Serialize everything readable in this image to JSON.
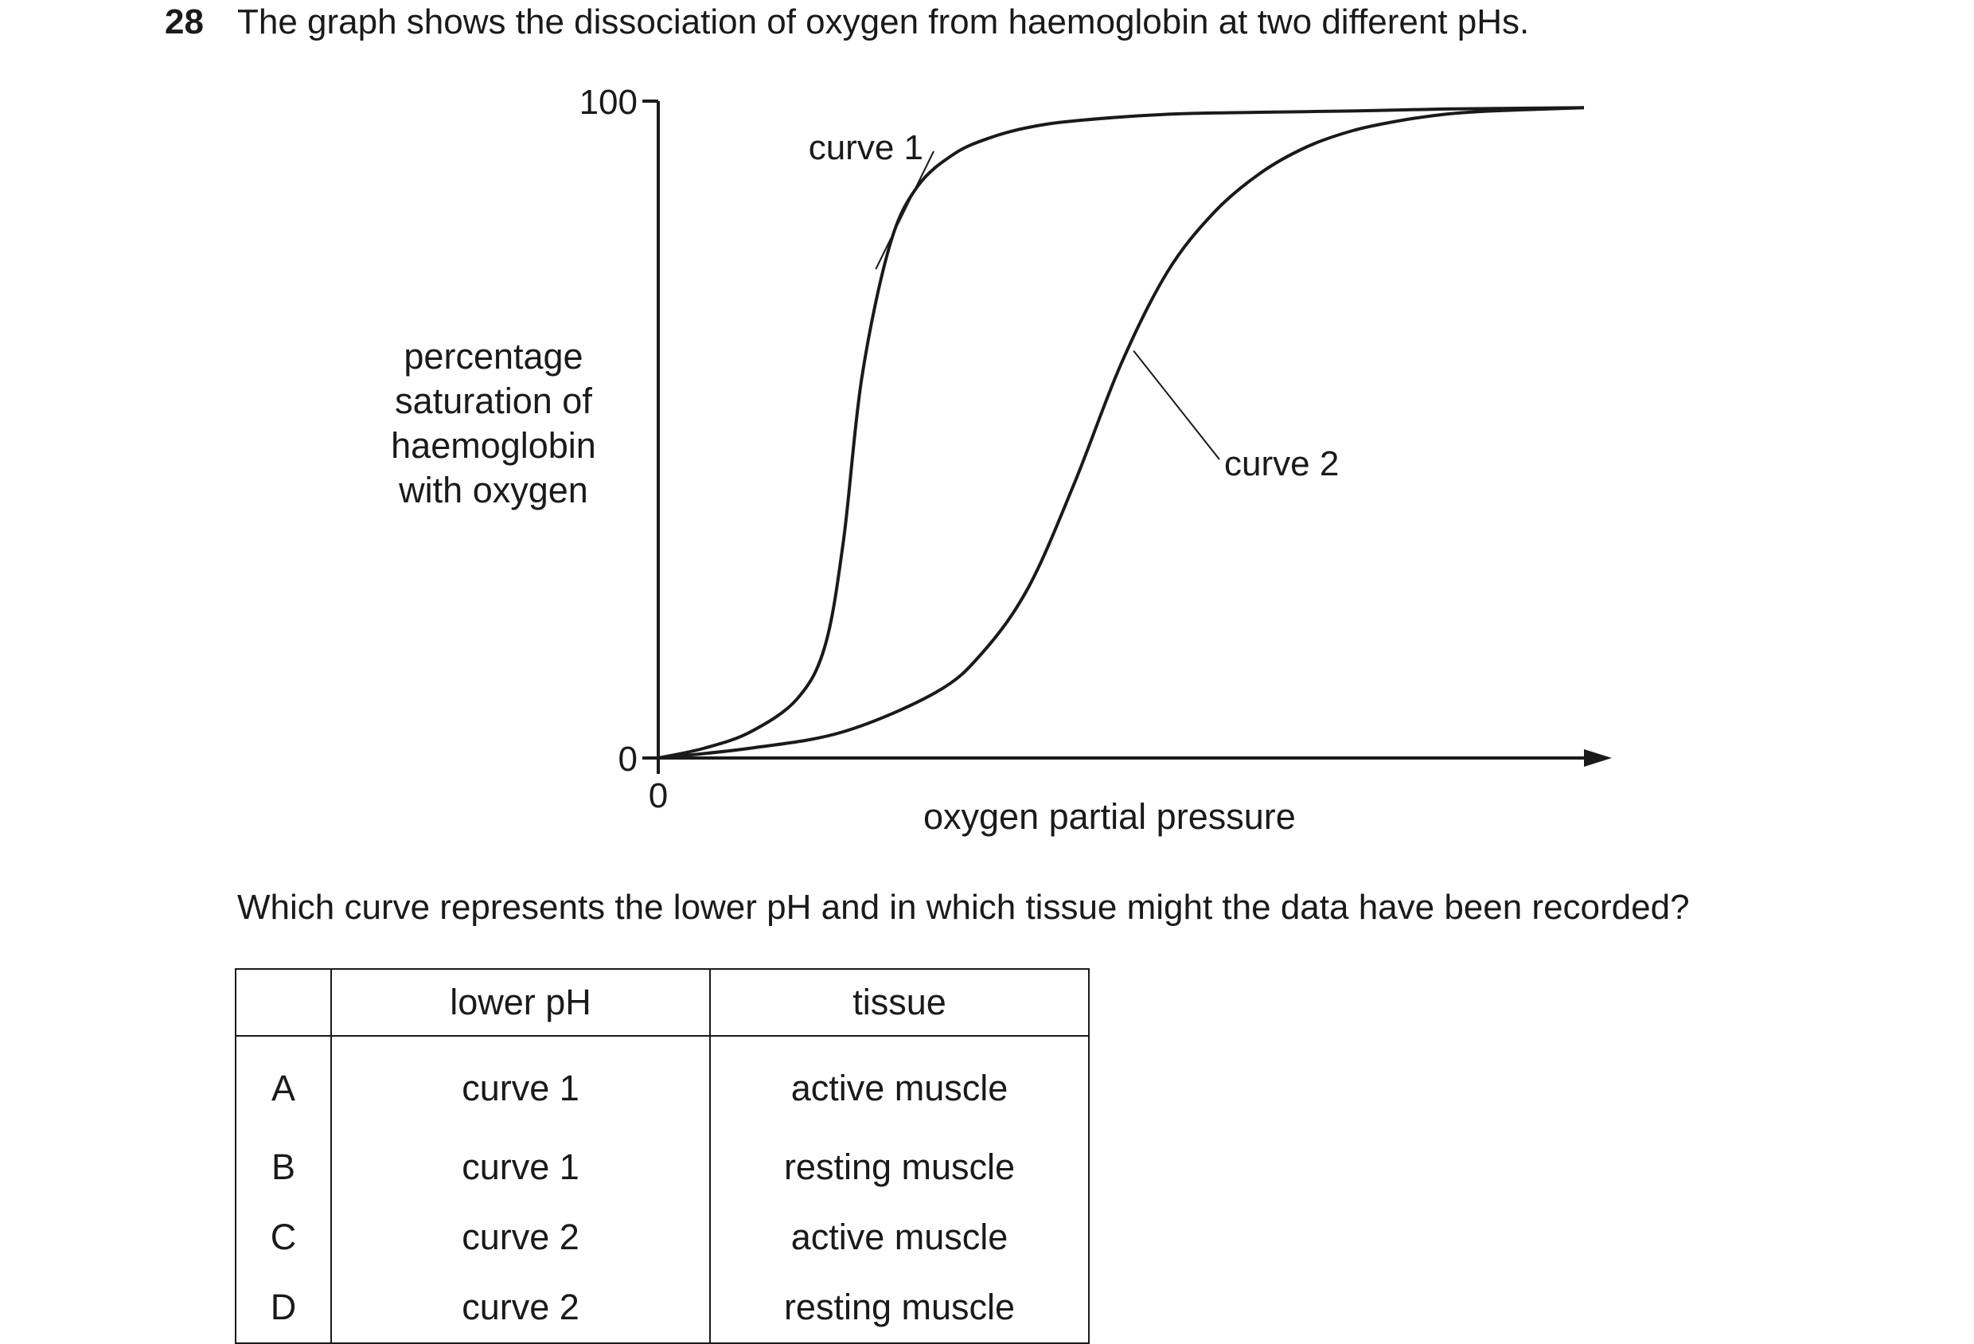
{
  "question": {
    "number": "28",
    "stem": "The graph shows the dissociation of oxygen from haemoglobin at two different pHs.",
    "prompt": "Which curve represents the lower pH and in which tissue might the data have been recorded?"
  },
  "chart_data": {
    "type": "line",
    "title": "",
    "xlabel": "oxygen partial pressure",
    "ylabel_lines": [
      "percentage",
      "saturation of",
      "haemoglobin",
      "with oxygen"
    ],
    "x_ticks": [
      "0"
    ],
    "y_ticks": [
      "0",
      "100"
    ],
    "ylim": [
      0,
      100
    ],
    "series": [
      {
        "name": "curve 1",
        "x": [
          0,
          5,
          10,
          15,
          18,
          20,
          22,
          25,
          28,
          32,
          36,
          40,
          45,
          55,
          65,
          75,
          85,
          100
        ],
        "values": [
          0,
          1.5,
          4,
          9,
          17,
          33,
          58,
          78,
          87,
          92,
          94.5,
          96,
          97,
          98,
          98.3,
          98.5,
          98.8,
          99
        ]
      },
      {
        "name": "curve 2",
        "x": [
          0,
          10,
          20,
          30,
          35,
          40,
          45,
          50,
          55,
          60,
          65,
          70,
          75,
          80,
          85,
          90,
          100
        ],
        "values": [
          0,
          1.5,
          4,
          10,
          16,
          26,
          42,
          60,
          74,
          83,
          89,
          93,
          95.5,
          97,
          98,
          98.5,
          99
        ]
      }
    ]
  },
  "table": {
    "headers": [
      "",
      "lower pH",
      "tissue"
    ],
    "rows": [
      [
        "A",
        "curve 1",
        "active muscle"
      ],
      [
        "B",
        "curve 1",
        "resting muscle"
      ],
      [
        "C",
        "curve 2",
        "active muscle"
      ],
      [
        "D",
        "curve 2",
        "resting muscle"
      ]
    ]
  }
}
